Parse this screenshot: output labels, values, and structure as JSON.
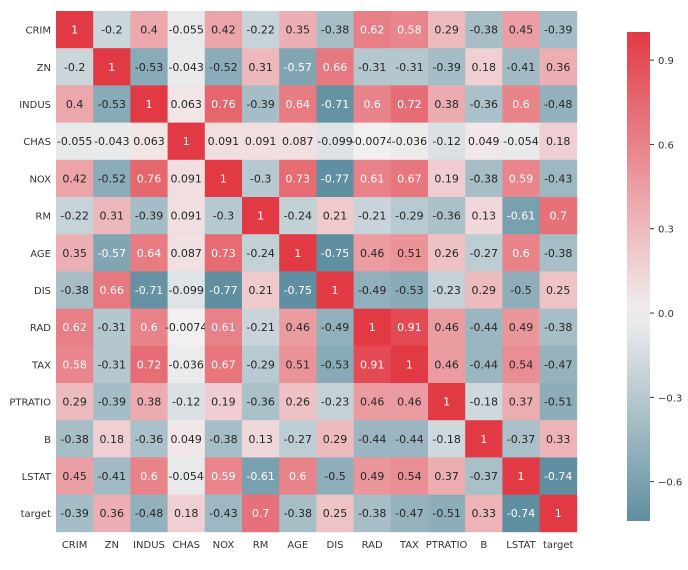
{
  "chart_data": {
    "type": "heatmap",
    "title": "",
    "xlabel": "",
    "ylabel": "",
    "variables": [
      "CRIM",
      "ZN",
      "INDUS",
      "CHAS",
      "NOX",
      "RM",
      "AGE",
      "DIS",
      "RAD",
      "TAX",
      "PTRATIO",
      "B",
      "LSTAT",
      "target"
    ],
    "matrix": [
      [
        1,
        -0.2,
        0.4,
        -0.055,
        0.42,
        -0.22,
        0.35,
        -0.38,
        0.62,
        0.58,
        0.29,
        -0.38,
        0.45,
        -0.39
      ],
      [
        -0.2,
        1,
        -0.53,
        -0.043,
        -0.52,
        0.31,
        -0.57,
        0.66,
        -0.31,
        -0.31,
        -0.39,
        0.18,
        -0.41,
        0.36
      ],
      [
        0.4,
        -0.53,
        1,
        0.063,
        0.76,
        -0.39,
        0.64,
        -0.71,
        0.6,
        0.72,
        0.38,
        -0.36,
        0.6,
        -0.48
      ],
      [
        -0.055,
        -0.043,
        0.063,
        1,
        0.091,
        0.091,
        0.087,
        -0.099,
        -0.0074,
        -0.036,
        -0.12,
        0.049,
        -0.054,
        0.18
      ],
      [
        0.42,
        -0.52,
        0.76,
        0.091,
        1,
        -0.3,
        0.73,
        -0.77,
        0.61,
        0.67,
        0.19,
        -0.38,
        0.59,
        -0.43
      ],
      [
        -0.22,
        0.31,
        -0.39,
        0.091,
        -0.3,
        1,
        -0.24,
        0.21,
        -0.21,
        -0.29,
        -0.36,
        0.13,
        -0.61,
        0.7
      ],
      [
        0.35,
        -0.57,
        0.64,
        0.087,
        0.73,
        -0.24,
        1,
        -0.75,
        0.46,
        0.51,
        0.26,
        -0.27,
        0.6,
        -0.38
      ],
      [
        -0.38,
        0.66,
        -0.71,
        -0.099,
        -0.77,
        0.21,
        -0.75,
        1,
        -0.49,
        -0.53,
        -0.23,
        0.29,
        -0.5,
        0.25
      ],
      [
        0.62,
        -0.31,
        0.6,
        -0.0074,
        0.61,
        -0.21,
        0.46,
        -0.49,
        1,
        0.91,
        0.46,
        -0.44,
        0.49,
        -0.38
      ],
      [
        0.58,
        -0.31,
        0.72,
        -0.036,
        0.67,
        -0.29,
        0.51,
        -0.53,
        0.91,
        1,
        0.46,
        -0.44,
        0.54,
        -0.47
      ],
      [
        0.29,
        -0.39,
        0.38,
        -0.12,
        0.19,
        -0.36,
        0.26,
        -0.23,
        0.46,
        0.46,
        1,
        -0.18,
        0.37,
        -0.51
      ],
      [
        -0.38,
        0.18,
        -0.36,
        0.049,
        -0.38,
        0.13,
        -0.27,
        0.29,
        -0.44,
        -0.44,
        -0.18,
        1,
        -0.37,
        0.33
      ],
      [
        0.45,
        -0.41,
        0.6,
        -0.054,
        0.59,
        -0.61,
        0.6,
        -0.5,
        0.49,
        0.54,
        0.37,
        -0.37,
        1,
        -0.74
      ],
      [
        -0.39,
        0.36,
        -0.48,
        0.18,
        -0.43,
        0.7,
        -0.38,
        0.25,
        -0.38,
        -0.47,
        -0.51,
        0.33,
        -0.74,
        1
      ]
    ],
    "colorbar": {
      "ticks": [
        "0.9",
        "0.6",
        "0.3",
        "0.0",
        "−0.3",
        "−0.6"
      ],
      "tick_values": [
        0.9,
        0.6,
        0.3,
        0.0,
        -0.3,
        -0.6
      ],
      "range": [
        -0.74,
        1.0
      ]
    },
    "colors": {
      "negative": "#5f8fa0",
      "neutral": "#f2f0f0",
      "positive": "#e23a45",
      "text_dark": "#262626",
      "text_light": "#ffffff"
    },
    "grid": false,
    "legend": "colorbar-right"
  }
}
